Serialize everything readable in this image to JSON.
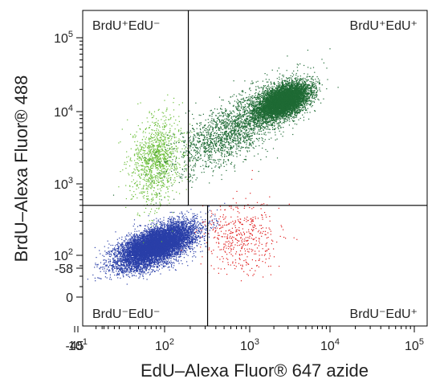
{
  "chart_data": {
    "type": "scatter",
    "xlabel": "EdU–Alexa Fluor® 647 azide",
    "ylabel": "BrdU–Alexa Fluor® 488",
    "x_scale": "biexponential",
    "y_scale": "biexponential",
    "x_ticks": [
      {
        "value": -45,
        "label": "-45"
      },
      {
        "value": 10,
        "label": "10¹"
      },
      {
        "value": 100,
        "label": "10²"
      },
      {
        "value": 1000,
        "label": "10³"
      },
      {
        "value": 10000,
        "label": "10⁴"
      },
      {
        "value": 100000,
        "label": "10⁵"
      }
    ],
    "y_ticks": [
      {
        "value": -58,
        "label": "-58"
      },
      {
        "value": 0,
        "label": "0"
      },
      {
        "value": 100,
        "label": "10²"
      },
      {
        "value": 1000,
        "label": "10³"
      },
      {
        "value": 10000,
        "label": "10⁴"
      },
      {
        "value": 100000,
        "label": "10⁵"
      }
    ],
    "gates": {
      "horizontal_y": 500,
      "vertical_upper_x": 190,
      "vertical_lower_x": 320
    },
    "quadrants": [
      {
        "key": "tl",
        "label": "BrdU⁺EdU⁻",
        "position": "top-left"
      },
      {
        "key": "tr",
        "label": "BrdU⁺EdU⁺",
        "position": "top-right"
      },
      {
        "key": "bl",
        "label": "BrdU⁻EdU⁻",
        "position": "bottom-left"
      },
      {
        "key": "br",
        "label": "BrdU⁻EdU⁺",
        "position": "bottom-right"
      }
    ],
    "series": [
      {
        "key": "double_negative",
        "color": "#2a3fa8",
        "count": 9000,
        "center": [
          80,
          140
        ],
        "spread": [
          0.22,
          0.15
        ],
        "correlation": 0.6
      },
      {
        "key": "brdu_positive",
        "color": "#6cbf3a",
        "count": 1200,
        "center": [
          80,
          2200
        ],
        "spread": [
          0.14,
          0.3
        ],
        "correlation": 0.2
      },
      {
        "key": "double_positive",
        "color": "#1e6a34",
        "count": 6500,
        "center": [
          2600,
          14000
        ],
        "spread": [
          0.16,
          0.12
        ],
        "correlation": 0.5
      },
      {
        "key": "double_positive_tail",
        "color": "#1e6a34",
        "count": 2200,
        "center": [
          700,
          6000
        ],
        "spread": [
          0.35,
          0.3
        ],
        "correlation": 0.7
      },
      {
        "key": "edu_positive",
        "color": "#e02020",
        "count": 450,
        "center": [
          800,
          180
        ],
        "spread": [
          0.22,
          0.25
        ],
        "correlation": 0.0
      }
    ],
    "grid": false,
    "legend": "none"
  }
}
